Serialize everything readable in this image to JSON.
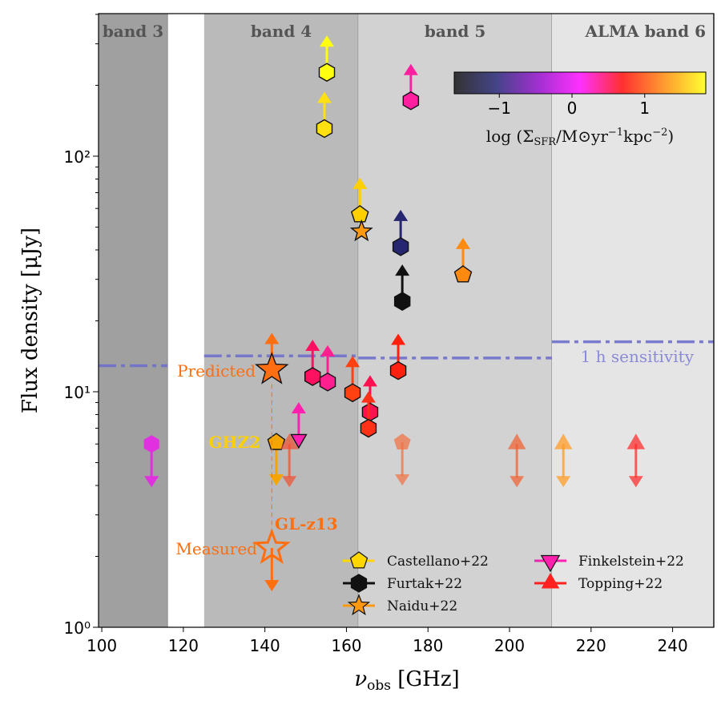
{
  "chart_data": {
    "type": "scatter",
    "xlabel": "ν_obs [GHz]",
    "xlabel_main": "ν",
    "xlabel_sub": "obs",
    "xlabel_unit": " [GHz]",
    "ylabel": "Flux density [μJy]",
    "xlim": [
      99.2,
      250.1
    ],
    "ylim": [
      1,
      403
    ],
    "yscale": "log",
    "grid": false,
    "x_ticks": [
      100,
      120,
      140,
      160,
      180,
      200,
      220,
      240
    ],
    "y_ticks": [
      1,
      10,
      100
    ],
    "y_tick_labels": [
      "10⁰",
      "10¹",
      "10²"
    ],
    "bands": [
      {
        "label": "band 3",
        "x": [
          99.2,
          116.1
        ],
        "color": "#a0a0a0"
      },
      {
        "label": "band 4",
        "x": [
          125.1,
          162.9
        ],
        "color": "#bababa"
      },
      {
        "label": "band 5",
        "x": [
          162.9,
          210.4
        ],
        "color": "#d2d2d2"
      },
      {
        "label": "ALMA band 6",
        "x": [
          210.4,
          250.1
        ],
        "color": "#e5e5e5"
      }
    ],
    "sensitivity": {
      "label": "1 h sensitivity",
      "color": "#7070cc",
      "segments": [
        {
          "x": [
            99.2,
            116.1
          ],
          "y": 12.9
        },
        {
          "x": [
            125.1,
            162.9
          ],
          "y": 14.2
        },
        {
          "x": [
            162.9,
            210.4
          ],
          "y": 13.9
        },
        {
          "x": [
            210.4,
            250.1
          ],
          "y": 16.3
        }
      ]
    },
    "series": [
      {
        "name": "Castellano+22",
        "marker": "pentagon",
        "legend_color": "#ffd700",
        "points": [
          {
            "x": 142.8,
            "y": 6.1,
            "limit": "upper",
            "color": "#f5a500",
            "label": "GHZ2"
          },
          {
            "x": 163.3,
            "y": 56.5,
            "limit": "lower",
            "color": "#ffd000"
          },
          {
            "x": 188.6,
            "y": 31.4,
            "limit": "lower",
            "color": "#ff8a10"
          },
          {
            "x": 173.7,
            "y": 6.1,
            "limit": "upper",
            "color": "#f07040",
            "faded": true
          }
        ]
      },
      {
        "name": "Furtak+22",
        "marker": "hexagon",
        "legend_color": "#111111",
        "points": [
          {
            "x": 155.2,
            "y": 227,
            "limit": "lower",
            "color": "#ffff10"
          },
          {
            "x": 154.6,
            "y": 131,
            "limit": "lower",
            "color": "#ffe010"
          },
          {
            "x": 175.8,
            "y": 172,
            "limit": "lower",
            "color": "#ff20a0"
          },
          {
            "x": 173.3,
            "y": 41.3,
            "limit": "lower",
            "color": "#262670"
          },
          {
            "x": 173.7,
            "y": 24.2,
            "limit": "lower",
            "color": "#111111"
          },
          {
            "x": 151.7,
            "y": 11.6,
            "limit": "lower",
            "color": "#ff1060"
          },
          {
            "x": 155.4,
            "y": 11.0,
            "limit": "lower",
            "color": "#ff2090"
          },
          {
            "x": 161.5,
            "y": 9.9,
            "limit": "lower",
            "color": "#ff4010"
          },
          {
            "x": 172.7,
            "y": 12.3,
            "limit": "lower",
            "color": "#ff2010"
          },
          {
            "x": 165.8,
            "y": 8.2,
            "limit": "lower",
            "color": "#ff1050"
          },
          {
            "x": 165.4,
            "y": 7.0,
            "limit": "lower",
            "color": "#ff3018"
          },
          {
            "x": 112.2,
            "y": 6.0,
            "limit": "upper",
            "color": "#e030e0",
            "noedge": true
          }
        ]
      },
      {
        "name": "Naidu+22",
        "marker": "star",
        "legend_color": "#ff9a10",
        "points": [
          {
            "x": 163.7,
            "y": 47.9,
            "limit": "none",
            "color": "#ff9a10"
          },
          {
            "x": 141.7,
            "y": 12.4,
            "limit": "lower",
            "color": "#ff6e10",
            "big": true,
            "label": "Predicted"
          },
          {
            "x": 141.7,
            "y": 2.17,
            "limit": "upper",
            "color": "#ff6e10",
            "big": true,
            "open": true,
            "label": "Measured"
          }
        ]
      },
      {
        "name": "Finkelstein+22",
        "marker": "triangle-down",
        "legend_color": "#ff20b0",
        "points": [
          {
            "x": 148.3,
            "y": 6.3,
            "limit": "lower",
            "color": "#ff20b0"
          }
        ]
      },
      {
        "name": "Topping+22",
        "marker": "triangle-up",
        "legend_color": "#ff2020",
        "points": [
          {
            "x": 146.0,
            "y": 6.0,
            "limit": "both",
            "color": "#f05030",
            "faded": true
          },
          {
            "x": 201.8,
            "y": 6.0,
            "limit": "both",
            "color": "#f06030",
            "faded": true
          },
          {
            "x": 213.2,
            "y": 6.0,
            "limit": "both",
            "color": "#ff9a20",
            "faded": true
          },
          {
            "x": 231.0,
            "y": 6.0,
            "limit": "both",
            "color": "#ff2828",
            "faded": true
          }
        ]
      }
    ],
    "annotations": {
      "predicted": "Predicted",
      "measured": "Measured",
      "ghz2": "GHZ2",
      "glz13": "GL-z13"
    },
    "colorbar": {
      "label": "log (Σ_SFR/M⊙yr⁻¹kpc⁻²)",
      "label_parts": {
        "pre": "log (Σ",
        "sub": "SFR",
        "mid": "/M⊙yr",
        "sup1": "−1",
        "mid2": "kpc",
        "sup2": "−2",
        "post": ")"
      },
      "range": [
        -1.62,
        1.84
      ],
      "ticks": [
        -1,
        0,
        1
      ],
      "tick_labels": [
        "−1",
        "0",
        "1"
      ],
      "stops": [
        "#333333",
        "#444488",
        "#a030d0",
        "#ff30ff",
        "#ff3030",
        "#ff9a30",
        "#ffff30"
      ]
    },
    "legend_placement": "lower-right"
  }
}
